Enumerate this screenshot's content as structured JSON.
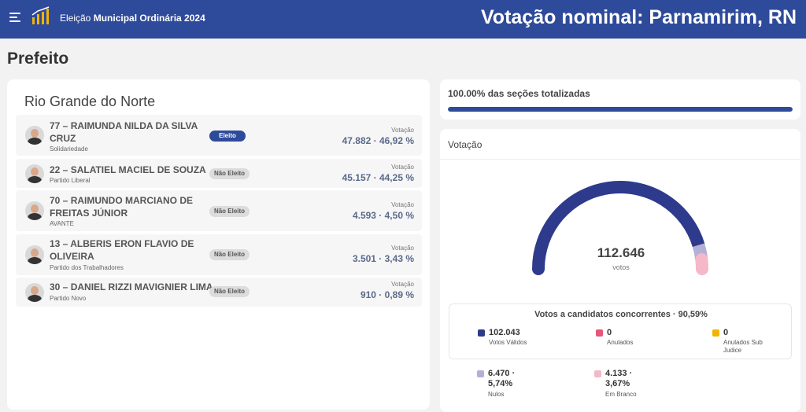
{
  "header": {
    "app_title_prefix": "Eleição",
    "app_title_bold": "Municipal Ordinária 2024",
    "page_heading": "Votação nominal: Parnamirim, RN"
  },
  "section_title": "Prefeito",
  "state_title": "Rio Grande do Norte",
  "candidates": [
    {
      "name": "77 – RAIMUNDA NILDA DA SILVA CRUZ",
      "party": "Solidariedade",
      "status": "Eleito",
      "elected": true,
      "votes_label": "Votação",
      "votes": "47.882 · 46,92 %"
    },
    {
      "name": "22 – SALATIEL MACIEL DE SOUZA",
      "party": "Partido Liberal",
      "status": "Não Eleito",
      "elected": false,
      "votes_label": "Votação",
      "votes": "45.157 · 44,25 %"
    },
    {
      "name": "70 – RAIMUNDO MARCIANO DE FREITAS JÚNIOR",
      "party": "AVANTE",
      "status": "Não Eleito",
      "elected": false,
      "votes_label": "Votação",
      "votes": "4.593 · 4,50 %"
    },
    {
      "name": "13 – ALBERIS ERON FLAVIO DE OLIVEIRA",
      "party": "Partido dos Trabalhadores",
      "status": "Não Eleito",
      "elected": false,
      "votes_label": "Votação",
      "votes": "3.501 · 3,43 %"
    },
    {
      "name": "30 – DANIEL RIZZI MAVIGNIER LIMA",
      "party": "Partido Novo",
      "status": "Não Eleito",
      "elected": false,
      "votes_label": "Votação",
      "votes": "910 · 0,89 %"
    }
  ],
  "progress": {
    "label": "100.00% das seções totalizadas",
    "percent": 100
  },
  "votes_card": {
    "title": "Votação",
    "total": "112.646",
    "unit": "votos",
    "summary_title": "Votos a candidatos concorrentes · 90,59%",
    "gauge_shares": {
      "validos": 90.59,
      "nulos": 5.74,
      "brancos": 3.67
    },
    "legend": [
      {
        "value": "102.043",
        "label": "Votos Válidos",
        "color": "#2e3a8c"
      },
      {
        "value": "0",
        "label": "Anulados",
        "color": "#e8547a"
      },
      {
        "value": "0",
        "label": "Anulados Sub Judice",
        "color": "#f0b400"
      },
      {
        "value": "6.470 · 5,74%",
        "label": "Nulos",
        "color": "#b3b0d8"
      },
      {
        "value": "4.133 · 3,67%",
        "label": "Em Branco",
        "color": "#f4b8c8"
      }
    ]
  },
  "colors": {
    "header_bg": "#2e4a9a",
    "accent": "#2e4a9a"
  }
}
